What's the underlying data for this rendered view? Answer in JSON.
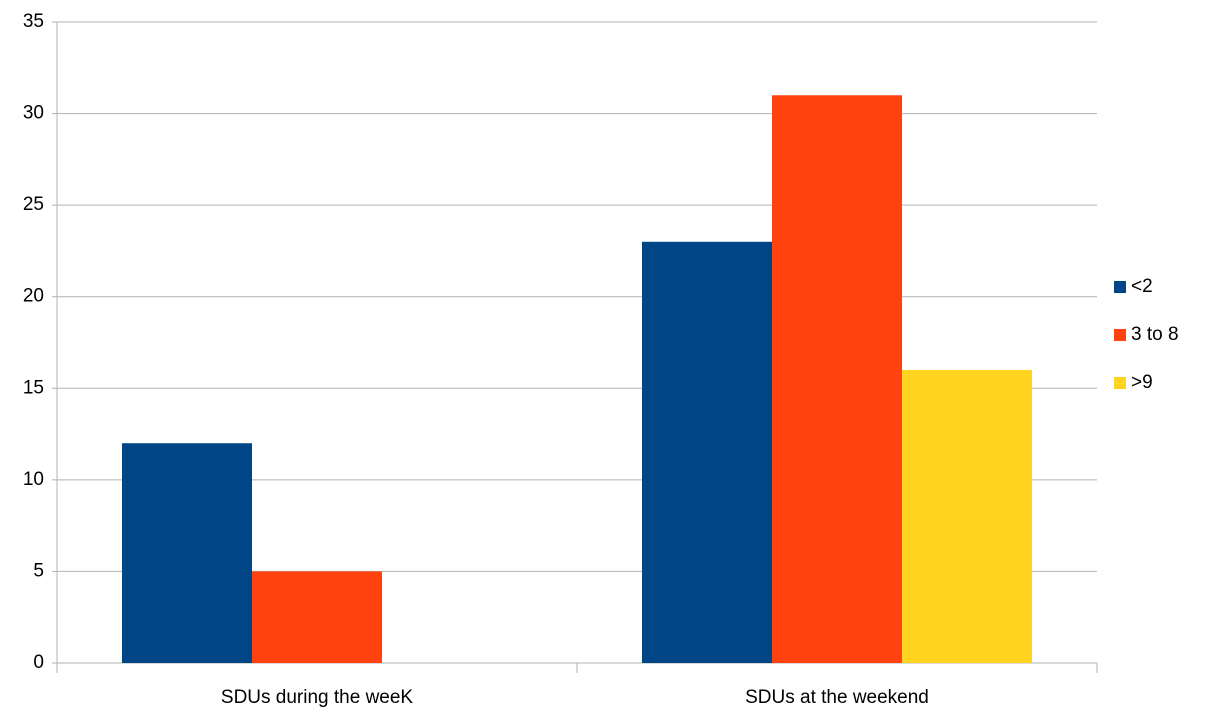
{
  "chart_data": {
    "type": "bar",
    "categories": [
      "SDUs during the weeK",
      "SDUs at the weekend"
    ],
    "series": [
      {
        "name": "<2",
        "color": "#004586",
        "values": [
          12,
          23
        ]
      },
      {
        "name": "3 to 8",
        "color": "#ff420e",
        "values": [
          5,
          31
        ]
      },
      {
        "name": ">9",
        "color": "#ffd320",
        "values": [
          0,
          16
        ]
      }
    ],
    "ylim": [
      0,
      35
    ],
    "yticks": [
      0,
      5,
      10,
      15,
      20,
      25,
      30,
      35
    ],
    "grid": true,
    "legend": "right"
  }
}
